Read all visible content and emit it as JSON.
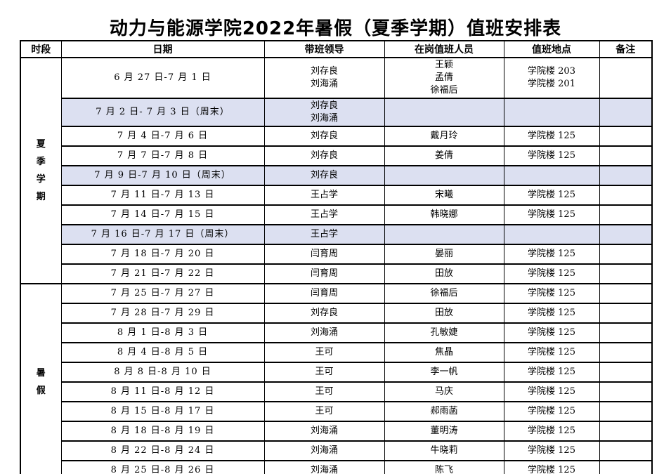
{
  "page": {
    "title": "动力与能源学院2022年暑假（夏季学期）值班安排表"
  },
  "colors": {
    "highlight": "#dce0f1",
    "border": "#000000",
    "text": "#000000",
    "background": "#ffffff"
  },
  "table": {
    "headers": [
      "时段",
      "日期",
      "带班领导",
      "在岗值班人员",
      "值班地点",
      "备注"
    ],
    "sections": [
      {
        "period": "夏季学期",
        "rows": [
          {
            "date": "6 月 27 日-7 月 1 日",
            "leader": "刘存良\n刘海涌",
            "staff": "王颖\n孟倩\n徐福后",
            "location": "学院楼 203\n学院楼 201",
            "note": "",
            "weekend": false
          },
          {
            "date": "7 月 2 日- 7 月 3 日（周末）",
            "leader": "刘存良\n刘海涌",
            "staff": "",
            "location": "",
            "note": "",
            "weekend": true
          },
          {
            "date": "7 月 4 日-7 月 6 日",
            "leader": "刘存良",
            "staff": "戴月玲",
            "location": "学院楼 125",
            "note": "",
            "weekend": false
          },
          {
            "date": "7 月 7 日-7 月 8 日",
            "leader": "刘存良",
            "staff": "姜倩",
            "location": "学院楼 125",
            "note": "",
            "weekend": false
          },
          {
            "date": "7 月 9 日-7 月 10 日（周末）",
            "leader": "刘存良",
            "staff": "",
            "location": "",
            "note": "",
            "weekend": true
          },
          {
            "date": "7 月 11 日-7 月 13 日",
            "leader": "王占学",
            "staff": "宋曦",
            "location": "学院楼 125",
            "note": "",
            "weekend": false
          },
          {
            "date": "7 月 14 日-7 月 15 日",
            "leader": "王占学",
            "staff": "韩晓娜",
            "location": "学院楼 125",
            "note": "",
            "weekend": false
          },
          {
            "date": "7 月 16 日-7 月 17 日（周末）",
            "leader": "王占学",
            "staff": "",
            "location": "",
            "note": "",
            "weekend": true
          },
          {
            "date": "7 月 18 日-7 月 20 日",
            "leader": "闫育周",
            "staff": "晏丽",
            "location": "学院楼 125",
            "note": "",
            "weekend": false
          },
          {
            "date": "7 月 21 日-7 月 22 日",
            "leader": "闫育周",
            "staff": "田放",
            "location": "学院楼 125",
            "note": "",
            "weekend": false
          }
        ]
      },
      {
        "period": "暑假",
        "rows": [
          {
            "date": "7 月 25 日-7 月 27 日",
            "leader": "闫育周",
            "staff": "徐福后",
            "location": "学院楼 125",
            "note": "",
            "weekend": false
          },
          {
            "date": "7 月 28 日-7 月 29 日",
            "leader": "刘存良",
            "staff": "田放",
            "location": "学院楼 125",
            "note": "",
            "weekend": false
          },
          {
            "date": "8 月 1 日-8 月 3 日",
            "leader": "刘海涌",
            "staff": "孔敏婕",
            "location": "学院楼 125",
            "note": "",
            "weekend": false
          },
          {
            "date": "8 月 4 日-8 月 5 日",
            "leader": "王可",
            "staff": "焦晶",
            "location": "学院楼 125",
            "note": "",
            "weekend": false
          },
          {
            "date": "8 月 8 日-8 月 10 日",
            "leader": "王可",
            "staff": "李一帆",
            "location": "学院楼 125",
            "note": "",
            "weekend": false
          },
          {
            "date": "8 月 11 日-8 月 12 日",
            "leader": "王可",
            "staff": "马庆",
            "location": "学院楼 125",
            "note": "",
            "weekend": false
          },
          {
            "date": "8 月 15 日-8 月 17 日",
            "leader": "王可",
            "staff": "郝雨菡",
            "location": "学院楼 125",
            "note": "",
            "weekend": false
          },
          {
            "date": "8 月 18 日-8 月 19 日",
            "leader": "刘海涌",
            "staff": "董明涛",
            "location": "学院楼 125",
            "note": "",
            "weekend": false
          },
          {
            "date": "8 月 22 日-8 月 24 日",
            "leader": "刘海涌",
            "staff": "牛晓莉",
            "location": "学院楼 125",
            "note": "",
            "weekend": false
          },
          {
            "date": "8 月 25 日-8 月 26 日",
            "leader": "刘海涌",
            "staff": "陈飞",
            "location": "学院楼 125",
            "note": "",
            "weekend": false
          }
        ]
      }
    ]
  }
}
